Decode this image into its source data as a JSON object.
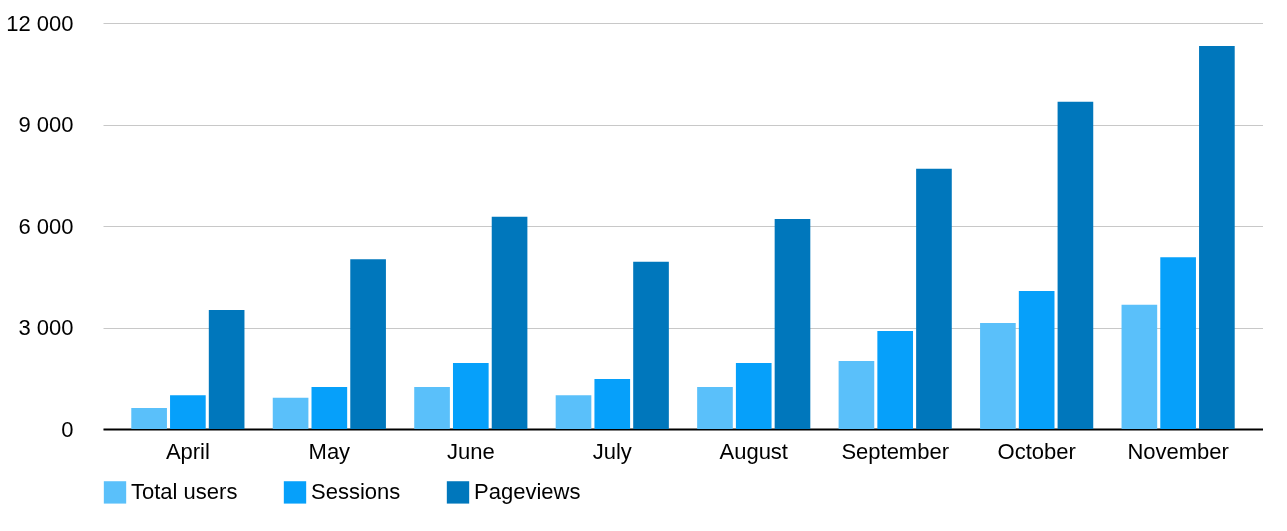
{
  "chart_data": {
    "type": "bar",
    "categories": [
      "April",
      "May",
      "June",
      "July",
      "August",
      "September",
      "October",
      "November"
    ],
    "series": [
      {
        "name": "Total users",
        "color": "#5ac0fa",
        "values": [
          620,
          920,
          1240,
          1000,
          1240,
          2010,
          3130,
          3670
        ]
      },
      {
        "name": "Sessions",
        "color": "#06a0fa",
        "values": [
          1000,
          1240,
          1950,
          1480,
          1950,
          2900,
          4080,
          5080
        ]
      },
      {
        "name": "Pageviews",
        "color": "#0077bc",
        "values": [
          3520,
          5020,
          6270,
          4940,
          6210,
          7690,
          9670,
          11320
        ]
      }
    ],
    "ylim": [
      0,
      12000
    ],
    "yticks": [
      0,
      {
        "value": 3000,
        "label": "3 000"
      },
      {
        "value": 6000,
        "label": "6 000"
      },
      {
        "value": 9000,
        "label": "9 000"
      },
      {
        "value": 12000,
        "label": "12 000"
      }
    ],
    "grid": "y",
    "legend": "bottom"
  }
}
